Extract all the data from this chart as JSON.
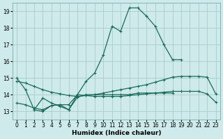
{
  "xlabel": "Humidex (Indice chaleur)",
  "background_color": "#ceeaea",
  "line_color": "#1a6b5a",
  "grid_color": "#aacccc",
  "xlim": [
    -0.5,
    23.5
  ],
  "ylim": [
    12.5,
    19.5
  ],
  "xticks": [
    0,
    1,
    2,
    3,
    4,
    5,
    6,
    7,
    8,
    9,
    10,
    11,
    12,
    13,
    14,
    15,
    16,
    17,
    18,
    19,
    20,
    21,
    22,
    23
  ],
  "yticks": [
    13,
    14,
    15,
    16,
    17,
    18,
    19
  ],
  "line1_x": [
    0,
    1,
    2,
    3,
    4,
    5,
    6,
    7,
    8,
    9,
    10,
    11,
    12,
    13,
    14,
    15,
    16,
    17,
    18,
    19
  ],
  "line1_y": [
    15.0,
    14.3,
    13.1,
    13.8,
    13.5,
    13.3,
    13.1,
    14.0,
    14.8,
    15.3,
    16.4,
    18.1,
    17.8,
    19.2,
    19.2,
    18.7,
    18.1,
    17.0,
    16.1,
    16.1
  ],
  "line2_x": [
    0,
    1,
    2,
    3,
    4,
    5,
    6,
    7,
    8,
    9,
    10,
    11,
    12,
    13,
    14,
    15,
    16,
    17,
    18,
    19,
    20,
    21,
    22,
    23
  ],
  "line2_y": [
    14.8,
    14.7,
    14.5,
    14.3,
    14.15,
    14.05,
    13.95,
    13.9,
    13.95,
    14.0,
    14.1,
    14.2,
    14.3,
    14.4,
    14.5,
    14.6,
    14.75,
    14.9,
    15.05,
    15.1,
    15.1,
    15.1,
    15.05,
    14.05
  ],
  "line3_x": [
    0,
    1,
    2,
    3,
    4,
    5,
    6,
    7,
    8,
    9,
    10,
    11,
    12,
    13,
    14,
    15,
    16,
    17,
    18,
    19,
    20,
    21,
    22,
    23
  ],
  "line3_y": [
    13.5,
    13.4,
    13.2,
    13.1,
    13.35,
    13.4,
    13.4,
    14.0,
    13.95,
    13.9,
    13.9,
    13.9,
    13.9,
    13.95,
    14.0,
    14.05,
    14.1,
    14.15,
    14.2,
    14.2,
    14.2,
    14.2,
    14.05,
    13.55
  ],
  "line4_x": [
    2,
    3,
    4,
    5,
    6,
    7,
    8,
    9,
    10,
    11,
    12,
    13,
    14,
    15,
    16,
    17,
    18
  ],
  "line4_y": [
    13.1,
    13.0,
    13.35,
    13.4,
    13.1,
    13.85,
    14.0,
    14.0,
    14.0,
    14.0,
    14.0,
    14.0,
    14.1,
    14.1,
    14.1,
    14.1,
    14.1
  ]
}
